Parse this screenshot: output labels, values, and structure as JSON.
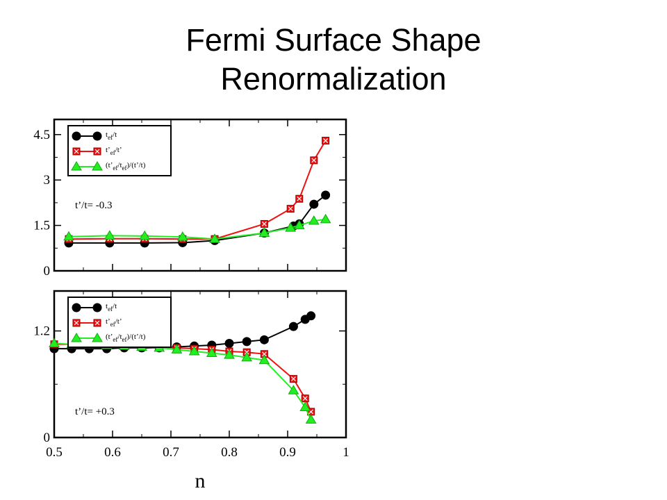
{
  "slide": {
    "title_line1": "Fermi Surface Shape",
    "title_line2": "Renormalization"
  },
  "chart_data": [
    {
      "type": "line",
      "annotation": "t’/t= -0.3",
      "xlim": [
        0.5,
        1.0
      ],
      "ylim": [
        0,
        5.0
      ],
      "yticks": [
        0,
        1.5,
        3,
        4.5
      ],
      "ytick_labels": [
        "0",
        "1.5",
        "3",
        "4.5"
      ],
      "xticks": [
        0.5,
        0.6,
        0.7,
        0.8,
        0.9,
        1.0
      ],
      "show_xtick_labels": false,
      "legend_position": "top-left",
      "series": [
        {
          "name": "t_ef/t",
          "legend_main": "t",
          "legend_sub": "ef",
          "legend_rest": "/t",
          "color": "#000000",
          "marker": "circle",
          "x": [
            0.525,
            0.595,
            0.655,
            0.72,
            0.775,
            0.86,
            0.91,
            0.92,
            0.945,
            0.965
          ],
          "y": [
            0.92,
            0.92,
            0.92,
            0.93,
            1.0,
            1.25,
            1.48,
            1.55,
            2.2,
            2.5
          ]
        },
        {
          "name": "t’_ef/t’",
          "legend_main": "t’",
          "legend_sub": "ef",
          "legend_rest": "/t’",
          "color": "#ee1111",
          "marker": "square",
          "x": [
            0.525,
            0.595,
            0.655,
            0.72,
            0.775,
            0.86,
            0.905,
            0.92,
            0.945,
            0.965
          ],
          "y": [
            1.05,
            1.06,
            1.06,
            1.05,
            1.05,
            1.55,
            2.05,
            2.38,
            3.65,
            4.3
          ]
        },
        {
          "name": "(t’_ef/t_ef)/(t’/t)",
          "legend_main": "(t’",
          "legend_sub": "ef",
          "legend_rest": "/t",
          "legend_sub2": "ef",
          "legend_rest2": ")/(t’/t)",
          "color": "#22ee22",
          "marker": "triangle",
          "x": [
            0.525,
            0.595,
            0.655,
            0.72,
            0.775,
            0.86,
            0.905,
            0.92,
            0.945,
            0.965
          ],
          "y": [
            1.13,
            1.16,
            1.15,
            1.12,
            1.05,
            1.25,
            1.42,
            1.5,
            1.65,
            1.7
          ]
        }
      ]
    },
    {
      "type": "line",
      "annotation": "t’/t= +0.3",
      "xlim": [
        0.5,
        1.0
      ],
      "ylim": [
        0,
        1.65
      ],
      "yticks": [
        0,
        1.2
      ],
      "ytick_labels": [
        "0",
        "1.2"
      ],
      "xticks": [
        0.5,
        0.6,
        0.7,
        0.8,
        0.9,
        1.0
      ],
      "xtick_labels": [
        "0.5",
        "0.6",
        "0.7",
        "0.8",
        "0.9",
        "1"
      ],
      "show_xtick_labels": true,
      "xlabel": "n",
      "legend_position": "top-left",
      "series": [
        {
          "name": "t_ef/t",
          "legend_main": "t",
          "legend_sub": "ef",
          "legend_rest": "/t",
          "color": "#000000",
          "marker": "circle",
          "x": [
            0.5,
            0.53,
            0.56,
            0.59,
            0.62,
            0.65,
            0.68,
            0.71,
            0.74,
            0.77,
            0.8,
            0.83,
            0.86,
            0.91,
            0.93,
            0.94
          ],
          "y": [
            1.0,
            1.0,
            1.0,
            1.0,
            1.01,
            1.01,
            1.01,
            1.02,
            1.03,
            1.04,
            1.06,
            1.08,
            1.1,
            1.25,
            1.33,
            1.37
          ]
        },
        {
          "name": "t’_ef/t’",
          "legend_main": "t’",
          "legend_sub": "ef",
          "legend_rest": "/t’",
          "color": "#ee1111",
          "marker": "square",
          "x": [
            0.5,
            0.53,
            0.56,
            0.59,
            0.62,
            0.65,
            0.68,
            0.71,
            0.74,
            0.77,
            0.8,
            0.83,
            0.86,
            0.91,
            0.93,
            0.94
          ],
          "y": [
            1.05,
            1.05,
            1.05,
            1.04,
            1.04,
            1.03,
            1.02,
            1.01,
            1.0,
            0.99,
            0.97,
            0.96,
            0.94,
            0.66,
            0.44,
            0.29
          ]
        },
        {
          "name": "(t’_ef/t_ef)/(t’/t)",
          "legend_main": "(t’",
          "legend_sub": "ef",
          "legend_rest": "/t",
          "legend_sub2": "ef",
          "legend_rest2": ")/(t’/t)",
          "color": "#22ee22",
          "marker": "triangle",
          "x": [
            0.5,
            0.53,
            0.56,
            0.59,
            0.62,
            0.65,
            0.68,
            0.71,
            0.74,
            0.77,
            0.8,
            0.83,
            0.86,
            0.91,
            0.93,
            0.94
          ],
          "y": [
            1.06,
            1.05,
            1.05,
            1.04,
            1.03,
            1.02,
            1.01,
            0.99,
            0.97,
            0.95,
            0.93,
            0.9,
            0.87,
            0.53,
            0.34,
            0.2
          ]
        }
      ]
    }
  ]
}
